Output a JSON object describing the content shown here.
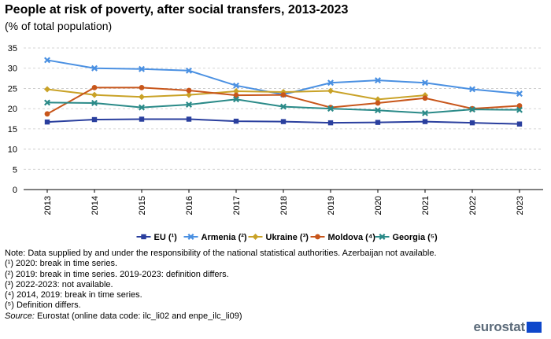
{
  "header": {
    "title": "People at risk of poverty, after social transfers, 2013-2023",
    "subtitle": "(% of total population)"
  },
  "chart_data": {
    "type": "line",
    "title": "People at risk of poverty, after social transfers, 2013-2023",
    "subtitle": "(% of total population)",
    "xlabel": "",
    "ylabel": "",
    "ylim": [
      0,
      35
    ],
    "yticks": [
      0,
      5,
      10,
      15,
      20,
      25,
      30,
      35
    ],
    "grid": "horizontal dashed",
    "legend_position": "bottom",
    "categories": [
      "2013",
      "2014",
      "2015",
      "2016",
      "2017",
      "2018",
      "2019",
      "2020",
      "2021",
      "2022",
      "2023"
    ],
    "series": [
      {
        "name": "EU (¹)",
        "color": "#2a3f9e",
        "marker": "square",
        "values": [
          16.7,
          17.3,
          17.4,
          17.4,
          16.9,
          16.8,
          16.5,
          16.6,
          16.8,
          16.5,
          16.2
        ]
      },
      {
        "name": "Armenia (²)",
        "color": "#4a90e2",
        "marker": "x",
        "values": [
          32.0,
          30.0,
          29.8,
          29.4,
          25.7,
          23.5,
          26.4,
          27.0,
          26.4,
          24.8,
          23.7
        ]
      },
      {
        "name": "Ukraine (³)",
        "color": "#c9a227",
        "marker": "diamond",
        "values": [
          24.8,
          23.4,
          22.9,
          23.4,
          24.3,
          24.1,
          24.4,
          22.3,
          23.3,
          null,
          null
        ]
      },
      {
        "name": "Moldova (⁴)",
        "color": "#c8561b",
        "marker": "circle",
        "values": [
          18.7,
          25.2,
          25.2,
          24.5,
          23.3,
          23.4,
          20.3,
          21.4,
          22.6,
          20.0,
          20.7
        ]
      },
      {
        "name": "Georgia (⁵)",
        "color": "#2a8a88",
        "marker": "x",
        "values": [
          21.5,
          21.4,
          20.3,
          21.0,
          22.3,
          20.5,
          20.0,
          19.6,
          18.9,
          19.8,
          19.7
        ]
      }
    ]
  },
  "notes": [
    "Note: Data supplied by and under the responsibility of the national statistical authorities. Azerbaijan not available.",
    "(¹) 2020: break in time series.",
    "(²) 2019: break in time series. 2019-2023: definition differs.",
    "(³) 2022-2023: not available.",
    "(⁴) 2014, 2019: break in time series.",
    "(⁵) Definition differs."
  ],
  "source": {
    "label": "Source:",
    "text": " Eurostat (online data code: ilc_li02 and enpe_ilc_li09)"
  },
  "logo": {
    "text": "eurostat",
    "color": "#5c6b7a",
    "flag_color": "#0e47cb"
  }
}
